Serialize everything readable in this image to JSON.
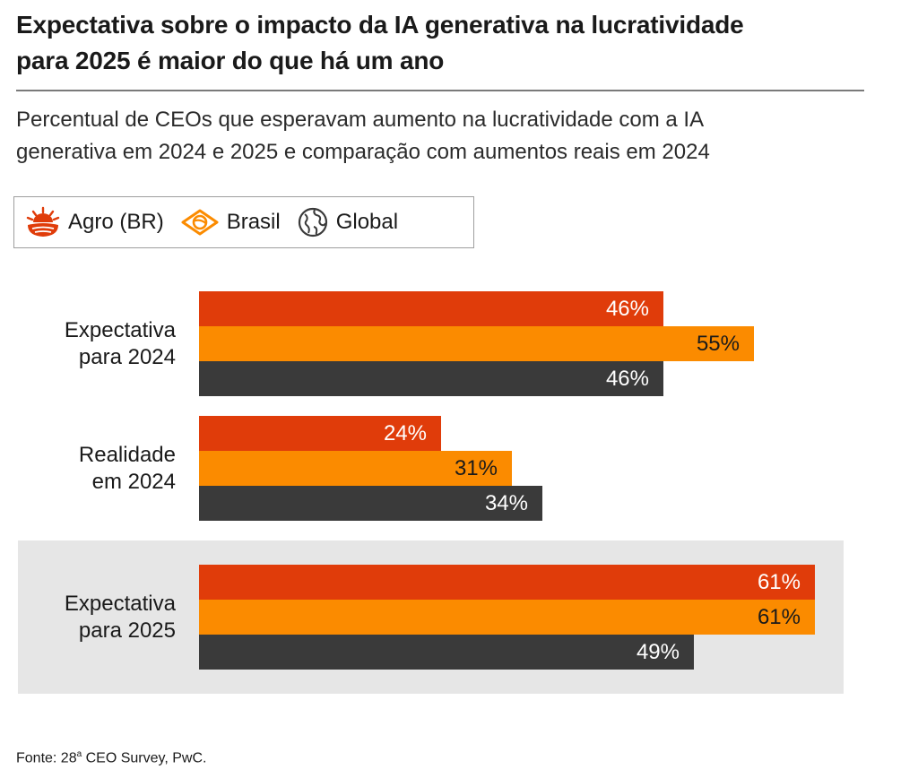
{
  "title_line1": "Expectativa sobre o impacto da IA generativa na lucratividade",
  "title_line2": "para 2025 é maior do que há um ano",
  "subtitle_line1": "Percentual de CEOs que esperavam aumento na lucratividade com a IA",
  "subtitle_line2": "generativa em 2024 e 2025 e comparação com aumentos reais em 2024",
  "legend": [
    {
      "label": "Agro (BR)",
      "icon": "sunrise-field-icon",
      "color": "#e03c0a"
    },
    {
      "label": "Brasil",
      "icon": "brazil-flag-diamond-icon",
      "color": "#fb8b00"
    },
    {
      "label": "Global",
      "icon": "globe-icon",
      "color": "#3a3a3a"
    }
  ],
  "source": {
    "prefix": "Fonte: 28",
    "sup": "a",
    "suffix": " CEO Survey, PwC."
  },
  "chart_data": {
    "type": "bar",
    "orientation": "horizontal",
    "categories": [
      {
        "line1": "Expectativa",
        "line2": "para 2024",
        "highlight": false
      },
      {
        "line1": "Realidade",
        "line2": "em 2024",
        "highlight": false
      },
      {
        "line1": "Expectativa",
        "line2": "para 2025",
        "highlight": true
      }
    ],
    "series": [
      {
        "name": "Agro (BR)",
        "color": "#e03c0a",
        "label_color": "#ffffff",
        "values": [
          46,
          24,
          61
        ]
      },
      {
        "name": "Brasil",
        "color": "#fb8b00",
        "label_color": "#1a1a1a",
        "values": [
          55,
          31,
          61
        ]
      },
      {
        "name": "Global",
        "color": "#3a3a3a",
        "label_color": "#ffffff",
        "values": [
          46,
          34,
          49
        ]
      }
    ],
    "value_suffix": "%",
    "xlim": [
      0,
      61
    ],
    "grid": false,
    "legend_position": "top-left"
  }
}
